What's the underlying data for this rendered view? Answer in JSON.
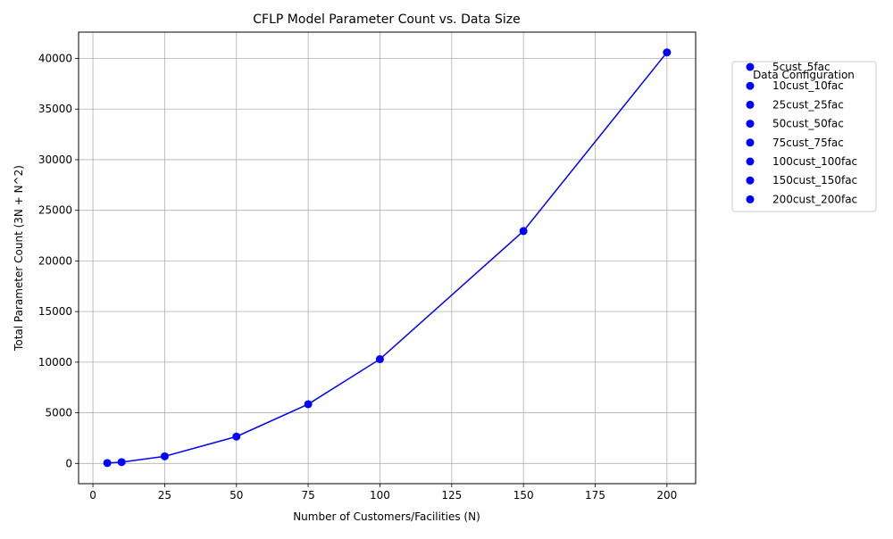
{
  "chart_data": {
    "type": "line",
    "title": "CFLP Model Parameter Count vs. Data Size",
    "xlabel": "Number of Customers/Facilities (N)",
    "ylabel": "Total Parameter Count (3N + N^2)",
    "xlim": [
      -5,
      210
    ],
    "ylim": [
      -2000,
      42600
    ],
    "xticks": [
      0,
      25,
      50,
      75,
      100,
      125,
      150,
      175,
      200
    ],
    "yticks": [
      0,
      5000,
      10000,
      15000,
      20000,
      25000,
      30000,
      35000,
      40000
    ],
    "grid": true,
    "line_color": "#0000ff",
    "marker_color": "#0000ff",
    "x": [
      5,
      10,
      25,
      50,
      75,
      100,
      150,
      200
    ],
    "y": [
      40,
      130,
      700,
      2650,
      5850,
      10300,
      22950,
      40600
    ],
    "legend": {
      "title": "Data Configuration",
      "placement": "outside-top-right",
      "entries": [
        "5cust_5fac",
        "10cust_10fac",
        "25cust_25fac",
        "50cust_50fac",
        "75cust_75fac",
        "100cust_100fac",
        "150cust_150fac",
        "200cust_200fac"
      ]
    }
  }
}
